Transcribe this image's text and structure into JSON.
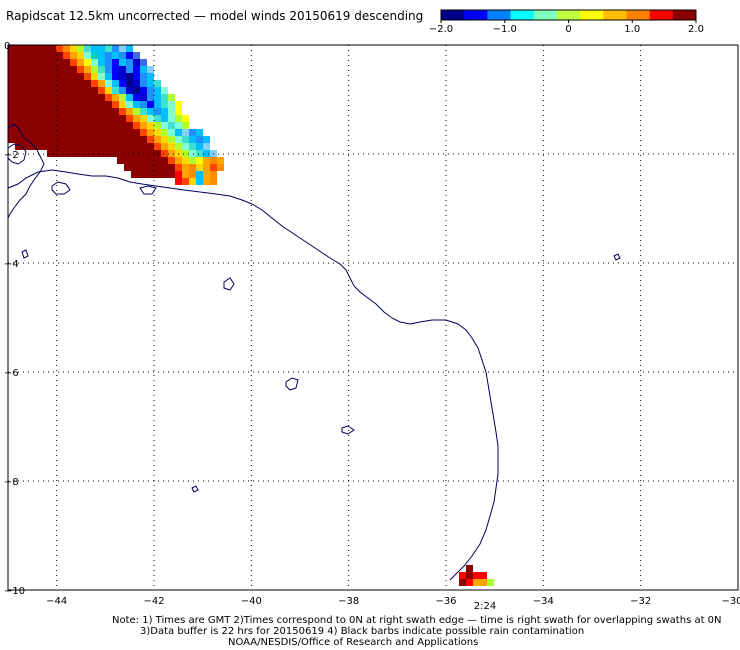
{
  "title": "Rapidscat 12.5km uncorrected — model winds 20150619 descending",
  "colorbar": {
    "tick_labels": [
      "−2.0",
      "−1.0",
      "0",
      "1.0",
      "2.0"
    ],
    "tick_values": [
      -2.0,
      -1.0,
      0,
      1.0,
      2.0
    ],
    "min": -2.0,
    "max": 2.0,
    "colors": [
      "#00008b",
      "#0000ff",
      "#007fff",
      "#00ffff",
      "#7fffbf",
      "#bfff3f",
      "#ffff00",
      "#ffbf00",
      "#ff7f00",
      "#ff0000",
      "#8b0000"
    ]
  },
  "map": {
    "lon_range": [
      -45,
      -30
    ],
    "lat_range": [
      -10,
      0
    ],
    "x_tick_labels": [
      "−44",
      "−42",
      "−40",
      "−38",
      "−36",
      "−34",
      "−32",
      "−30"
    ],
    "x_tick_values": [
      -44,
      -42,
      -40,
      -38,
      -36,
      -34,
      -32,
      -30
    ],
    "y_tick_labels": [
      "0",
      "−2",
      "−4",
      "−6",
      "−8",
      "−10"
    ],
    "y_tick_values": [
      0,
      -2,
      -4,
      -6,
      -8,
      -10
    ],
    "gridlines": "dotted",
    "coastline_color": "#00005a",
    "swath_time_label": "2:24",
    "swath_time_color": "#8b0000"
  },
  "notes": [
    "Note: 1) Times are GMT 2)Times correspond to 0N at right swath edge — time is right swath for overlapping swaths at 0N",
    "3)Data buffer is 22 hrs for 20150619 4) Black barbs indicate possible rain contamination",
    "NOAA/NESDIS/Office of Research and Applications"
  ]
}
